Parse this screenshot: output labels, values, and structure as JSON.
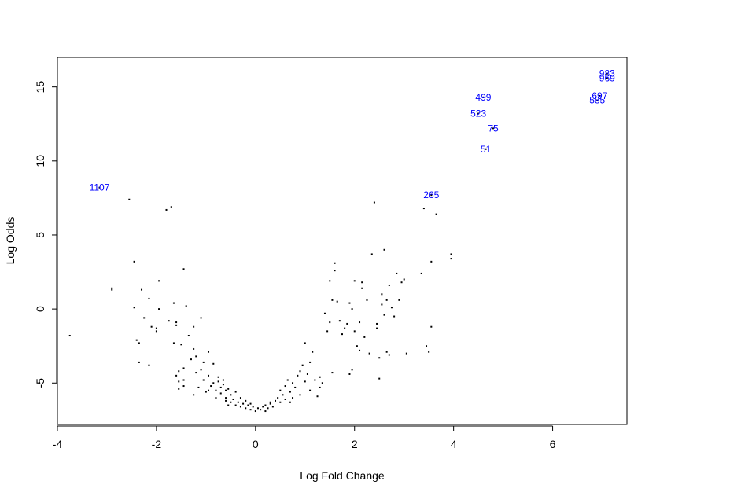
{
  "chart_data": {
    "type": "scatter",
    "title": "",
    "xlabel": "Log Fold Change",
    "ylabel": "Log Odds",
    "xlim": [
      -4,
      7.5
    ],
    "ylim": [
      -7.8,
      17
    ],
    "xticks": [
      -4,
      -2,
      0,
      2,
      4,
      6
    ],
    "yticks": [
      -5,
      0,
      5,
      10,
      15
    ],
    "xtick_labels": [
      "-4",
      "-2",
      "0",
      "2",
      "4",
      "6"
    ],
    "ytick_labels": [
      "-5",
      "0",
      "5",
      "10",
      "15"
    ],
    "grid": false,
    "legend": "none",
    "point_color": "#000000",
    "label_color": "#0000ff",
    "labeled_points": [
      {
        "label": "983",
        "x": 7.1,
        "y": 15.9
      },
      {
        "label": "969",
        "x": 7.1,
        "y": 15.6
      },
      {
        "label": "697",
        "x": 6.95,
        "y": 14.4
      },
      {
        "label": "585",
        "x": 6.9,
        "y": 14.1
      },
      {
        "label": "499",
        "x": 4.6,
        "y": 14.3
      },
      {
        "label": "523",
        "x": 4.5,
        "y": 13.2
      },
      {
        "label": "75",
        "x": 4.8,
        "y": 12.2
      },
      {
        "label": "51",
        "x": 4.65,
        "y": 10.8
      },
      {
        "label": "265",
        "x": 3.55,
        "y": 7.7
      },
      {
        "label": "1107",
        "x": -3.15,
        "y": 8.2
      }
    ],
    "points": [
      [
        -3.75,
        -1.8
      ],
      [
        -2.9,
        1.4
      ],
      [
        -2.9,
        1.3
      ],
      [
        -2.55,
        7.4
      ],
      [
        -2.45,
        3.2
      ],
      [
        -2.45,
        0.1
      ],
      [
        -2.4,
        -2.1
      ],
      [
        -2.35,
        -2.3
      ],
      [
        -2.35,
        -3.6
      ],
      [
        -2.3,
        1.3
      ],
      [
        -2.25,
        -0.6
      ],
      [
        -2.15,
        -3.8
      ],
      [
        -2.15,
        0.7
      ],
      [
        -2.1,
        -1.2
      ],
      [
        -2.0,
        -1.3
      ],
      [
        -2.0,
        -1.5
      ],
      [
        -1.95,
        1.9
      ],
      [
        -1.95,
        0.0
      ],
      [
        -1.8,
        6.7
      ],
      [
        -1.7,
        6.9
      ],
      [
        -1.75,
        -0.8
      ],
      [
        -1.65,
        0.4
      ],
      [
        -1.65,
        -2.3
      ],
      [
        -1.6,
        -0.9
      ],
      [
        -1.6,
        -1.1
      ],
      [
        -1.55,
        -4.2
      ],
      [
        -1.55,
        -4.9
      ],
      [
        -1.55,
        -5.4
      ],
      [
        -1.5,
        -2.4
      ],
      [
        -1.45,
        2.7
      ],
      [
        -1.45,
        -4.0
      ],
      [
        -1.45,
        -4.8
      ],
      [
        -1.45,
        -5.2
      ],
      [
        -1.4,
        0.2
      ],
      [
        -1.35,
        -1.8
      ],
      [
        -1.3,
        -3.4
      ],
      [
        -1.25,
        -1.2
      ],
      [
        -1.25,
        -2.7
      ],
      [
        -1.2,
        -3.2
      ],
      [
        -1.2,
        -4.3
      ],
      [
        -1.15,
        -5.3
      ],
      [
        -1.1,
        -0.6
      ],
      [
        -1.1,
        -4.1
      ],
      [
        -1.05,
        -3.6
      ],
      [
        -1.05,
        -4.8
      ],
      [
        -1.0,
        -5.6
      ],
      [
        -0.95,
        -2.9
      ],
      [
        -0.95,
        -4.5
      ],
      [
        -0.9,
        -5.2
      ],
      [
        -0.85,
        -3.7
      ],
      [
        -0.85,
        -5.0
      ],
      [
        -0.8,
        -5.5
      ],
      [
        -0.8,
        -6.0
      ],
      [
        -0.75,
        -4.6
      ],
      [
        -0.75,
        -4.9
      ],
      [
        -0.7,
        -5.3
      ],
      [
        -0.7,
        -5.7
      ],
      [
        -0.65,
        -4.8
      ],
      [
        -0.65,
        -5.1
      ],
      [
        -0.6,
        -5.5
      ],
      [
        -0.6,
        -6.2
      ],
      [
        -0.55,
        -5.4
      ],
      [
        -0.55,
        -6.5
      ],
      [
        -0.5,
        -5.8
      ],
      [
        -0.5,
        -6.3
      ],
      [
        -0.45,
        -6.1
      ],
      [
        -0.4,
        -5.6
      ],
      [
        -0.4,
        -6.5
      ],
      [
        -0.35,
        -6.3
      ],
      [
        -0.3,
        -6.0
      ],
      [
        -0.3,
        -6.6
      ],
      [
        -0.25,
        -6.4
      ],
      [
        -0.2,
        -6.2
      ],
      [
        -0.2,
        -6.7
      ],
      [
        -0.15,
        -6.5
      ],
      [
        -0.1,
        -6.4
      ],
      [
        -0.1,
        -6.8
      ],
      [
        -0.05,
        -6.6
      ],
      [
        0.0,
        -6.9
      ],
      [
        0.05,
        -6.7
      ],
      [
        0.1,
        -6.8
      ],
      [
        0.15,
        -6.6
      ],
      [
        0.2,
        -6.5
      ],
      [
        0.2,
        -6.9
      ],
      [
        0.25,
        -6.7
      ],
      [
        0.3,
        -6.4
      ],
      [
        0.35,
        -6.6
      ],
      [
        0.4,
        -6.2
      ],
      [
        0.45,
        -6.0
      ],
      [
        0.5,
        -5.5
      ],
      [
        0.5,
        -6.3
      ],
      [
        0.55,
        -5.8
      ],
      [
        0.6,
        -5.2
      ],
      [
        0.6,
        -6.1
      ],
      [
        0.65,
        -4.8
      ],
      [
        0.7,
        -5.6
      ],
      [
        0.75,
        -5.0
      ],
      [
        0.75,
        -6.0
      ],
      [
        0.8,
        -5.3
      ],
      [
        0.85,
        -4.5
      ],
      [
        0.9,
        -4.2
      ],
      [
        0.9,
        -5.8
      ],
      [
        0.95,
        -3.8
      ],
      [
        1.0,
        -4.9
      ],
      [
        1.0,
        -2.3
      ],
      [
        1.05,
        -4.4
      ],
      [
        1.1,
        -3.6
      ],
      [
        1.1,
        -5.5
      ],
      [
        1.15,
        -2.9
      ],
      [
        1.2,
        -4.8
      ],
      [
        1.25,
        -5.9
      ],
      [
        1.3,
        -5.3
      ],
      [
        1.3,
        -4.6
      ],
      [
        1.35,
        -5.0
      ],
      [
        1.4,
        -0.3
      ],
      [
        1.45,
        -1.5
      ],
      [
        1.5,
        -0.9
      ],
      [
        1.5,
        1.9
      ],
      [
        1.55,
        0.6
      ],
      [
        1.55,
        -4.3
      ],
      [
        1.6,
        3.1
      ],
      [
        1.6,
        2.6
      ],
      [
        1.65,
        0.5
      ],
      [
        1.7,
        -0.8
      ],
      [
        1.75,
        -1.7
      ],
      [
        1.8,
        -1.3
      ],
      [
        1.85,
        -1.0
      ],
      [
        1.9,
        0.4
      ],
      [
        1.9,
        -4.4
      ],
      [
        1.95,
        0.0
      ],
      [
        1.95,
        -4.1
      ],
      [
        2.0,
        1.9
      ],
      [
        2.0,
        -1.5
      ],
      [
        2.05,
        -2.5
      ],
      [
        2.1,
        -2.8
      ],
      [
        2.1,
        -0.9
      ],
      [
        2.15,
        1.8
      ],
      [
        2.15,
        1.4
      ],
      [
        2.2,
        -1.9
      ],
      [
        2.25,
        0.6
      ],
      [
        2.3,
        -3.0
      ],
      [
        2.35,
        3.7
      ],
      [
        2.4,
        7.2
      ],
      [
        2.45,
        -1.0
      ],
      [
        2.45,
        -1.3
      ],
      [
        2.5,
        -3.3
      ],
      [
        2.5,
        -4.7
      ],
      [
        2.55,
        1.0
      ],
      [
        2.55,
        0.3
      ],
      [
        2.6,
        -0.4
      ],
      [
        2.65,
        0.6
      ],
      [
        2.65,
        -2.9
      ],
      [
        2.7,
        1.6
      ],
      [
        2.7,
        -3.1
      ],
      [
        2.75,
        0.1
      ],
      [
        2.8,
        -0.5
      ],
      [
        2.85,
        2.4
      ],
      [
        2.9,
        0.6
      ],
      [
        2.95,
        1.8
      ],
      [
        3.0,
        2.0
      ],
      [
        3.05,
        -3.0
      ],
      [
        3.35,
        2.4
      ],
      [
        3.4,
        6.8
      ],
      [
        3.45,
        -2.5
      ],
      [
        3.5,
        -2.9
      ],
      [
        3.55,
        3.2
      ],
      [
        3.55,
        -1.2
      ],
      [
        3.65,
        6.4
      ],
      [
        3.95,
        3.7
      ],
      [
        3.95,
        3.4
      ],
      [
        2.6,
        4.0
      ],
      [
        -1.25,
        -5.8
      ],
      [
        -0.95,
        -5.5
      ],
      [
        0.3,
        -6.3
      ],
      [
        0.7,
        -6.3
      ],
      [
        -1.6,
        -4.5
      ],
      [
        -0.6,
        -6.0
      ]
    ]
  }
}
